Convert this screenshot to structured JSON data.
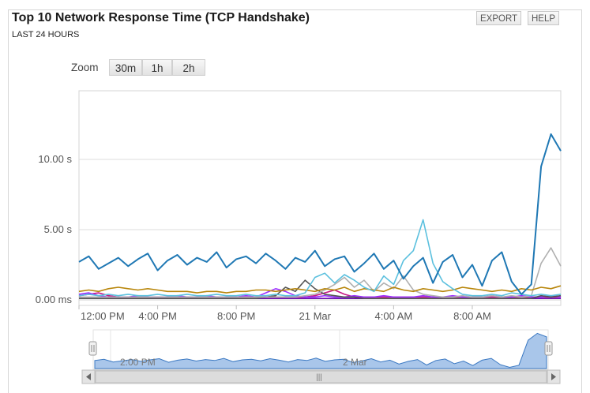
{
  "header": {
    "title": "Top 10 Network Response Time (TCP Handshake)",
    "subtitle": "LAST 24 HOURS",
    "export_label": "EXPORT",
    "help_label": "HELP"
  },
  "zoom": {
    "label": "Zoom",
    "options": [
      "30m",
      "1h",
      "2h"
    ]
  },
  "navigator": {
    "labels": [
      "2:00 PM",
      "2 Mar"
    ],
    "scroll_thumb": "|||"
  },
  "colors": {
    "main_series": "#1f78b4",
    "grid": "#dddddd",
    "navigator_fill": "#a9c6ea",
    "navigator_line": "#3a78c2"
  },
  "chart_data": {
    "type": "line",
    "title": "Top 10 Network Response Time (TCP Handshake)",
    "subtitle": "LAST 24 HOURS",
    "y_ticks": [
      "0.00 ms",
      "5.00 s",
      "10.00 s"
    ],
    "x_ticks": [
      "12:00 PM",
      "4:00 PM",
      "8:00 PM",
      "21 Mar",
      "4:00 AM",
      "8:00 AM"
    ],
    "ylim": [
      0,
      14.5
    ],
    "grid": true,
    "x": [
      0,
      0.5,
      1,
      1.5,
      2,
      2.5,
      3,
      3.5,
      4,
      4.5,
      5,
      5.5,
      6,
      6.5,
      7,
      7.5,
      8,
      8.5,
      9,
      9.5,
      10,
      10.5,
      11,
      11.5,
      12,
      12.5,
      13,
      13.5,
      14,
      14.5,
      15,
      15.5,
      16,
      16.5,
      17,
      17.5,
      18,
      18.5,
      19,
      19.5,
      20,
      20.5,
      21,
      21.5,
      22,
      22.5,
      23,
      23.5,
      24,
      24.5
    ],
    "series": [
      {
        "color": "#1f78b4",
        "values": [
          2.7,
          3.1,
          2.2,
          2.6,
          3.0,
          2.4,
          2.9,
          3.3,
          2.1,
          2.8,
          3.2,
          2.5,
          3.0,
          2.7,
          3.4,
          2.3,
          2.9,
          3.1,
          2.6,
          3.3,
          2.8,
          2.2,
          3.0,
          2.7,
          3.5,
          2.4,
          2.9,
          3.1,
          2.0,
          2.6,
          3.3,
          2.2,
          2.8,
          1.5,
          2.4,
          3.0,
          1.2,
          2.7,
          3.2,
          1.6,
          2.5,
          1.0,
          2.8,
          3.4,
          1.3,
          0.4,
          1.1,
          9.5,
          11.8,
          10.6
        ]
      },
      {
        "color": "#5bc0de",
        "values": [
          0.3,
          0.4,
          0.3,
          0.4,
          0.3,
          0.4,
          0.3,
          0.3,
          0.4,
          0.3,
          0.3,
          0.4,
          0.3,
          0.3,
          0.4,
          0.3,
          0.3,
          0.4,
          0.3,
          0.3,
          0.4,
          0.3,
          0.3,
          0.5,
          1.6,
          1.9,
          1.2,
          1.8,
          1.4,
          0.9,
          0.6,
          1.7,
          1.1,
          2.8,
          3.5,
          5.7,
          2.6,
          1.3,
          0.8,
          0.4,
          0.3,
          0.3,
          0.4,
          0.3,
          0.5,
          0.4,
          0.3,
          0.4,
          0.3,
          0.4
        ]
      },
      {
        "color": "#b8860b",
        "values": [
          0.6,
          0.7,
          0.6,
          0.8,
          0.9,
          0.8,
          0.7,
          0.8,
          0.7,
          0.6,
          0.6,
          0.6,
          0.5,
          0.6,
          0.6,
          0.5,
          0.6,
          0.6,
          0.7,
          0.7,
          0.6,
          0.7,
          0.8,
          0.7,
          0.6,
          0.8,
          0.7,
          0.9,
          0.6,
          0.8,
          0.7,
          0.6,
          0.9,
          0.7,
          0.6,
          0.8,
          0.7,
          0.6,
          0.7,
          0.9,
          0.8,
          0.7,
          0.6,
          0.7,
          0.6,
          0.8,
          0.7,
          0.9,
          0.8,
          1.0
        ]
      },
      {
        "color": "#b0b0b0",
        "values": [
          0.2,
          0.2,
          0.2,
          0.2,
          0.2,
          0.2,
          0.2,
          0.2,
          0.2,
          0.2,
          0.2,
          0.2,
          0.2,
          0.2,
          0.2,
          0.2,
          0.2,
          0.2,
          0.2,
          0.2,
          0.2,
          0.2,
          0.2,
          0.3,
          0.4,
          0.7,
          1.1,
          1.6,
          0.9,
          1.4,
          0.6,
          1.2,
          0.8,
          1.7,
          0.7,
          0.4,
          0.3,
          0.2,
          0.2,
          0.3,
          0.2,
          0.2,
          0.3,
          0.2,
          0.3,
          0.2,
          0.3,
          2.6,
          3.7,
          2.4
        ]
      },
      {
        "color": "#555555",
        "values": [
          0.1,
          0.1,
          0.1,
          0.1,
          0.1,
          0.1,
          0.1,
          0.1,
          0.1,
          0.1,
          0.1,
          0.1,
          0.1,
          0.1,
          0.1,
          0.1,
          0.1,
          0.1,
          0.1,
          0.2,
          0.3,
          0.9,
          0.6,
          1.4,
          0.8,
          0.4,
          0.3,
          0.2,
          0.2,
          0.1,
          0.1,
          0.1,
          0.1,
          0.1,
          0.1,
          0.1,
          0.1,
          0.1,
          0.1,
          0.1,
          0.1,
          0.1,
          0.1,
          0.1,
          0.1,
          0.1,
          0.1,
          0.3,
          0.2,
          0.3
        ]
      },
      {
        "color": "#9b30ff",
        "values": [
          0.4,
          0.5,
          0.3,
          0.2,
          0.2,
          0.2,
          0.3,
          0.2,
          0.2,
          0.2,
          0.3,
          0.2,
          0.2,
          0.3,
          0.2,
          0.2,
          0.2,
          0.3,
          0.2,
          0.5,
          0.8,
          0.6,
          0.3,
          0.2,
          0.2,
          0.3,
          0.2,
          0.2,
          0.3,
          0.2,
          0.2,
          0.3,
          0.2,
          0.2,
          0.2,
          0.3,
          0.2,
          0.2,
          0.3,
          0.2,
          0.2,
          0.2,
          0.3,
          0.2,
          0.2,
          0.3,
          0.2,
          0.2,
          0.3,
          0.2
        ]
      },
      {
        "color": "#c71585",
        "values": [
          0.3,
          0.4,
          0.5,
          0.3,
          0.2,
          0.2,
          0.2,
          0.2,
          0.2,
          0.2,
          0.2,
          0.2,
          0.2,
          0.2,
          0.2,
          0.2,
          0.2,
          0.2,
          0.2,
          0.2,
          0.2,
          0.2,
          0.2,
          0.2,
          0.3,
          0.5,
          0.7,
          0.4,
          0.2,
          0.2,
          0.2,
          0.2,
          0.2,
          0.2,
          0.2,
          0.2,
          0.2,
          0.2,
          0.2,
          0.2,
          0.2,
          0.2,
          0.2,
          0.2,
          0.2,
          0.2,
          0.2,
          0.2,
          0.2,
          0.2
        ]
      },
      {
        "color": "#6a0dad",
        "values": [
          0.1,
          0.1,
          0.1,
          0.1,
          0.1,
          0.1,
          0.1,
          0.1,
          0.1,
          0.1,
          0.1,
          0.1,
          0.1,
          0.1,
          0.1,
          0.1,
          0.1,
          0.1,
          0.1,
          0.1,
          0.1,
          0.1,
          0.1,
          0.1,
          0.1,
          0.1,
          0.1,
          0.1,
          0.1,
          0.1,
          0.1,
          0.1,
          0.1,
          0.1,
          0.1,
          0.1,
          0.1,
          0.1,
          0.1,
          0.1,
          0.1,
          0.1,
          0.1,
          0.1,
          0.1,
          0.1,
          0.1,
          0.1,
          0.1,
          0.1
        ]
      }
    ]
  }
}
